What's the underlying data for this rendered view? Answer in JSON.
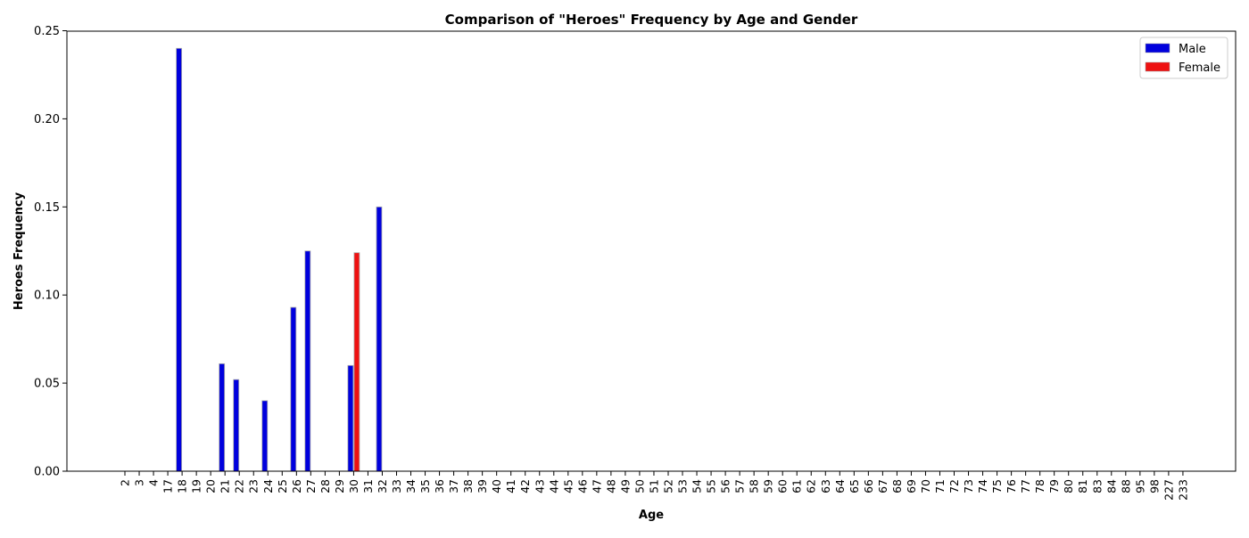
{
  "chart_data": {
    "type": "bar",
    "title": "Comparison of \"Heroes\" Frequency by Age and Gender",
    "xlabel": "Age",
    "ylabel": "Heroes Frequency",
    "ylim": [
      0,
      0.25
    ],
    "yticks": [
      "0.00",
      "0.05",
      "0.10",
      "0.15",
      "0.20",
      "0.25"
    ],
    "grid": false,
    "legend_position": "top-right",
    "categories": [
      "2",
      "3",
      "4",
      "17",
      "18",
      "19",
      "20",
      "21",
      "22",
      "23",
      "24",
      "25",
      "26",
      "27",
      "28",
      "29",
      "30",
      "31",
      "32",
      "33",
      "34",
      "35",
      "36",
      "37",
      "38",
      "39",
      "40",
      "41",
      "42",
      "43",
      "44",
      "45",
      "46",
      "47",
      "48",
      "49",
      "50",
      "51",
      "52",
      "53",
      "54",
      "55",
      "56",
      "57",
      "58",
      "59",
      "60",
      "61",
      "62",
      "63",
      "64",
      "65",
      "66",
      "67",
      "68",
      "69",
      "70",
      "71",
      "72",
      "73",
      "74",
      "75",
      "76",
      "77",
      "78",
      "79",
      "80",
      "81",
      "83",
      "84",
      "88",
      "95",
      "98",
      "227",
      "233"
    ],
    "series": [
      {
        "name": "Male",
        "color": "#0000dd",
        "values": [
          0,
          0,
          0,
          0,
          0.24,
          0,
          0,
          0.061,
          0.052,
          0,
          0.04,
          0,
          0.093,
          0.125,
          0,
          0,
          0.06,
          0,
          0.15,
          0,
          0,
          0,
          0,
          0,
          0,
          0,
          0,
          0,
          0,
          0,
          0,
          0,
          0,
          0,
          0,
          0,
          0,
          0,
          0,
          0,
          0,
          0,
          0,
          0,
          0,
          0,
          0,
          0,
          0,
          0,
          0,
          0,
          0,
          0,
          0,
          0,
          0,
          0,
          0,
          0,
          0,
          0,
          0,
          0,
          0,
          0,
          0,
          0,
          0,
          0,
          0,
          0,
          0,
          0,
          0
        ]
      },
      {
        "name": "Female",
        "color": "#ee1111",
        "values": [
          0,
          0,
          0,
          0,
          0,
          0,
          0,
          0,
          0,
          0,
          0,
          0,
          0,
          0,
          0,
          0,
          0.124,
          0,
          0,
          0,
          0,
          0,
          0,
          0,
          0,
          0,
          0,
          0,
          0,
          0,
          0,
          0,
          0,
          0,
          0,
          0,
          0,
          0,
          0,
          0,
          0,
          0,
          0,
          0,
          0,
          0,
          0,
          0,
          0,
          0,
          0,
          0,
          0,
          0,
          0,
          0,
          0,
          0,
          0,
          0,
          0,
          0,
          0,
          0,
          0,
          0,
          0,
          0,
          0,
          0,
          0,
          0,
          0,
          0,
          0
        ]
      }
    ]
  }
}
